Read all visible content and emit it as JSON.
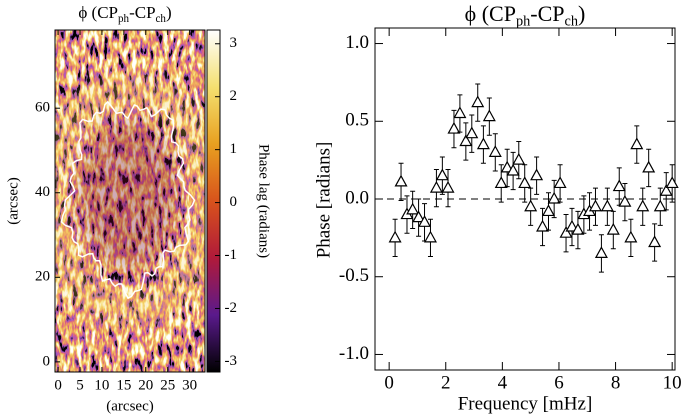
{
  "chart_data": [
    {
      "type": "image",
      "title": [
        "ϕ (CP",
        "ph",
        "-CP",
        "ch",
        ")"
      ],
      "x_label": "(arcsec)",
      "y_label": "(arcsec)",
      "xlim": [
        -0.7,
        33.5
      ],
      "ylim": [
        -2.4,
        78.5
      ],
      "xticks": [
        0,
        5,
        10,
        15,
        20,
        25,
        30
      ],
      "yticks": [
        0,
        20,
        40,
        60
      ],
      "colorbar": {
        "label": "Phase lag (radians)",
        "lim": [
          -3.2,
          3.26
        ],
        "ticks": [
          -3,
          -2,
          -1,
          0,
          1,
          2,
          3
        ],
        "colors": [
          "#000000",
          "#5a1a8c",
          "#b01a3a",
          "#d8531c",
          "#e8a020",
          "#f4e070",
          "#ffffff"
        ]
      }
    },
    {
      "type": "errorbar",
      "title": [
        "ϕ (CP",
        "ph",
        "-CP",
        "ch",
        ")"
      ],
      "x_label": "Frequency [mHz]",
      "y_label": "Phase [radians]",
      "xlim": [
        -0.5,
        10.1
      ],
      "ylim": [
        -1.1,
        1.1
      ],
      "xticks": [
        0,
        2,
        4,
        6,
        8,
        10
      ],
      "yticks": [
        {
          "value": -1,
          "label": "-1.0"
        },
        -0.5,
        {
          "value": 0,
          "label": "0.0"
        },
        0.5,
        {
          "value": 1,
          "label": "1.0"
        }
      ],
      "reference_line": 0,
      "x": [
        0.21,
        0.42,
        0.63,
        0.83,
        1.04,
        1.25,
        1.46,
        1.67,
        1.88,
        2.08,
        2.29,
        2.5,
        2.71,
        2.92,
        3.13,
        3.33,
        3.54,
        3.75,
        3.96,
        4.17,
        4.38,
        4.58,
        4.79,
        5.0,
        5.21,
        5.42,
        5.63,
        5.83,
        6.04,
        6.25,
        6.46,
        6.67,
        6.88,
        7.08,
        7.29,
        7.5,
        7.71,
        7.92,
        8.13,
        8.33,
        8.54,
        8.75,
        8.96,
        9.17,
        9.38,
        9.58,
        9.79,
        10.0
      ],
      "series": [
        {
          "color": "#000000",
          "values": [
            -0.25,
            0.11,
            -0.1,
            -0.07,
            -0.12,
            -0.15,
            -0.25,
            0.07,
            0.15,
            0.07,
            0.45,
            0.55,
            0.37,
            0.42,
            0.62,
            0.35,
            0.53,
            0.3,
            0.1,
            0.2,
            0.18,
            0.25,
            0.1,
            -0.05,
            0.15,
            -0.18,
            -0.08,
            0.0,
            0.1,
            -0.22,
            -0.18,
            -0.2,
            -0.1,
            -0.08,
            -0.05,
            -0.35,
            -0.05,
            -0.2,
            0.08,
            -0.02,
            -0.25,
            0.35,
            -0.05,
            0.2,
            -0.28,
            -0.05,
            0.05,
            0.1
          ],
          "errors": [
            0.12,
            0.12,
            0.12,
            0.12,
            0.12,
            0.12,
            0.12,
            0.12,
            0.12,
            0.12,
            0.12,
            0.12,
            0.12,
            0.12,
            0.12,
            0.12,
            0.12,
            0.12,
            0.12,
            0.12,
            0.12,
            0.12,
            0.12,
            0.12,
            0.12,
            0.12,
            0.12,
            0.12,
            0.12,
            0.12,
            0.12,
            0.12,
            0.12,
            0.12,
            0.12,
            0.12,
            0.12,
            0.12,
            0.12,
            0.12,
            0.12,
            0.12,
            0.12,
            0.12,
            0.12,
            0.12,
            0.12,
            0.12
          ]
        }
      ]
    }
  ]
}
